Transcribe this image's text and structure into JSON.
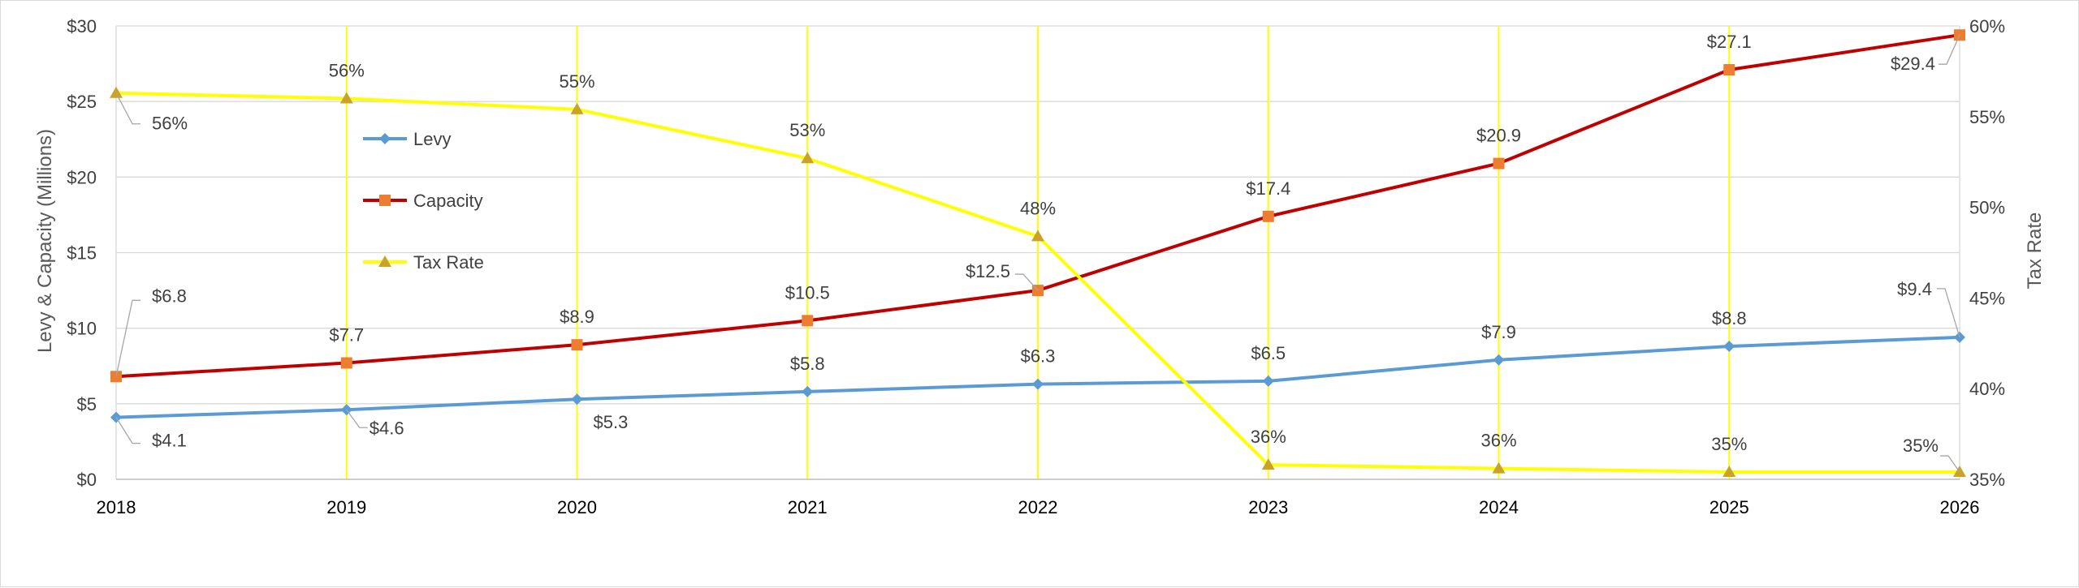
{
  "chart_data": {
    "type": "line",
    "categories": [
      "2018",
      "2019",
      "2020",
      "2021",
      "2022",
      "2023",
      "2024",
      "2025",
      "2026"
    ],
    "series": [
      {
        "name": "Levy",
        "axis": "left",
        "color": "#5B9BD5",
        "marker": "diamond",
        "values": [
          4.1,
          4.6,
          5.3,
          5.8,
          6.3,
          6.5,
          7.9,
          8.8,
          9.4
        ],
        "labels": [
          "$4.1",
          "$4.6",
          "$5.3",
          "$5.8",
          "$6.3",
          "$6.5",
          "$7.9",
          "$8.8",
          "$9.4"
        ]
      },
      {
        "name": "Capacity",
        "axis": "left",
        "color": "#C00000",
        "marker_color": "#ED7D31",
        "marker": "square",
        "values": [
          6.8,
          7.7,
          8.9,
          10.5,
          12.5,
          17.4,
          20.9,
          27.1,
          29.4
        ],
        "labels": [
          "$6.8",
          "$7.7",
          "$8.9",
          "$10.5",
          "$12.5",
          "$17.4",
          "$20.9",
          "$27.1",
          "$29.4"
        ]
      },
      {
        "name": "Tax Rate",
        "axis": "right",
        "color": "#FFFF00",
        "marker_color": "#C9A227",
        "marker": "triangle",
        "values": [
          56.3,
          56.0,
          55.4,
          52.7,
          48.4,
          35.8,
          35.6,
          35.4,
          35.4
        ],
        "labels": [
          "56%",
          "56%",
          "55%",
          "53%",
          "48%",
          "36%",
          "36%",
          "35%",
          "35%"
        ]
      }
    ],
    "ylabel": "Levy & Capacity (Millions)",
    "ylabel_right": "Tax Rate",
    "ylim": [
      0,
      30
    ],
    "ylim_right": [
      35,
      60
    ],
    "yticks": [
      "$0",
      "$5",
      "$10",
      "$15",
      "$20",
      "$25",
      "$30"
    ],
    "yticks_right": [
      "35%",
      "40%",
      "45%",
      "50%",
      "55%",
      "60%"
    ],
    "grid": true,
    "vertical_drop_lines": true,
    "legend_position": "upper-left inside plot"
  }
}
